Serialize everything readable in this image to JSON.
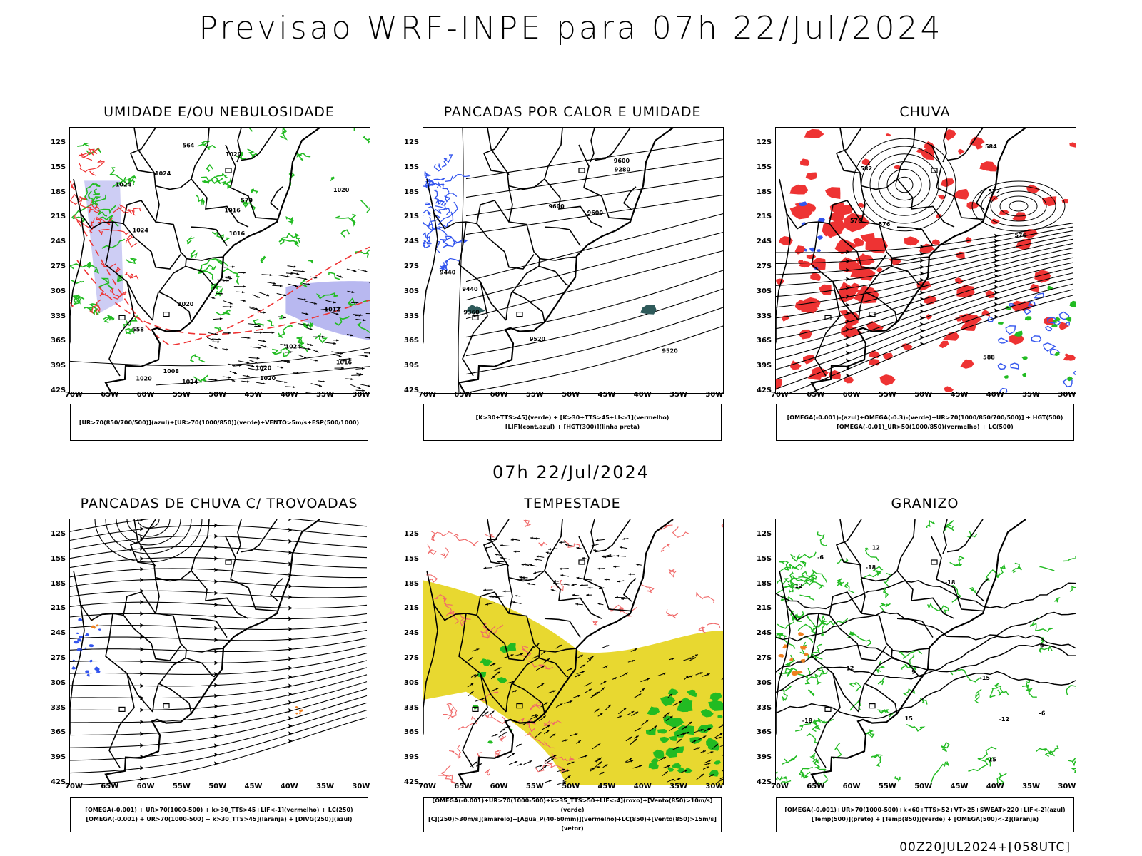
{
  "title": "Previsao WRF-INPE  para 07h 22/Jul/2024",
  "subtitle": "07h 22/Jul/2024",
  "footer": "00Z20JUL2024+[058UTC]",
  "axes": {
    "lat_labels": [
      "12S",
      "15S",
      "18S",
      "21S",
      "24S",
      "27S",
      "30S",
      "33S",
      "36S",
      "39S",
      "42S"
    ],
    "lon_labels": [
      "70W",
      "65W",
      "60W",
      "55W",
      "50W",
      "45W",
      "40W",
      "35W",
      "30W"
    ]
  },
  "panels": [
    {
      "title": "UMIDADE E/OU NEBULOSIDADE",
      "legend": [
        "[UR>70(850/700/500)](azul)+[UR>70(1000/850)](verde)+VENTO>5m/s+ESP(500/1000)"
      ],
      "labels": [
        "1016",
        "1020",
        "1020",
        "1020",
        "1024",
        "1024",
        "1024",
        "1024",
        "570",
        "1020",
        "1024",
        "1020",
        "1016",
        "1020",
        "1016",
        "1012",
        "1008",
        "564",
        "558"
      ]
    },
    {
      "title": "PANCADAS POR CALOR E UMIDADE",
      "legend": [
        "[K>30+TTS>45](verde) + [K>30+TTS>45+LI<-1](vermelho)",
        "[LIF](cont.azul) + [HGT(300)](linha preta)"
      ],
      "labels": [
        "9600",
        "9520",
        "9440",
        "9600",
        "9600",
        "9520",
        "9280",
        "9360",
        "9440"
      ]
    },
    {
      "title": "CHUVA",
      "legend": [
        "[OMEGA(-0.001)-(azul)+OMEGA(-0.3)-(verde)+UR>70(1000/850/700/500)] + HGT(500)",
        "[OMEGA(-0.01)_UR>50(1000/850)(vermelho) + LC(500)"
      ],
      "labels": [
        "582",
        "576",
        "576",
        "588",
        "584",
        "576",
        "572"
      ]
    },
    {
      "title": "PANCADAS DE CHUVA C/ TROVOADAS",
      "legend": [
        "[OMEGA(-0.001) + UR>70(1000-500) + k>30_TTS>45+LIF<-1](vermelho) + LC(250)",
        "[OMEGA(-0.001) + UR>70(1000-500) + k>30_TTS>45](laranja) + [DIVG(250)](azul)"
      ],
      "labels": []
    },
    {
      "title": "TEMPESTADE",
      "legend": [
        "[OMEGA(-0.001)+UR>70(1000-500)+k>35_TTS>50+LIF<-4](roxo)+[Vento(850)>10m/s](verde)",
        "[CJ(250)>30m/s](amarelo)+[Agua_P(40-60mm)](vermelho)+LC(850)+[Vento(850)>15m/s](vetor)"
      ],
      "labels": []
    },
    {
      "title": "GRANIZO",
      "legend": [
        "[OMEGA(-0.001)+UR>70(1000-500)+k<60+TTS>52+VT>25+SWEAT>220+LIF<-2](azul)",
        "[Temp(500)](preto) + [Temp(850)](verde) + [OMEGA(500)<-2](laranja)"
      ],
      "labels": [
        "-6",
        "-6",
        "-12",
        "-12",
        "-18",
        "-18",
        "-18",
        "12",
        "15",
        "15",
        "12",
        "6",
        "9",
        "-15"
      ]
    }
  ],
  "colors": {
    "green": "#22bb22",
    "blue": "#3355ee",
    "red": "#ee3333",
    "lavender": "#b8b8f0",
    "yellow": "#e8d830",
    "orange": "#f08020",
    "teal": "#2e5a5a",
    "lightred": "#f06a6a"
  }
}
